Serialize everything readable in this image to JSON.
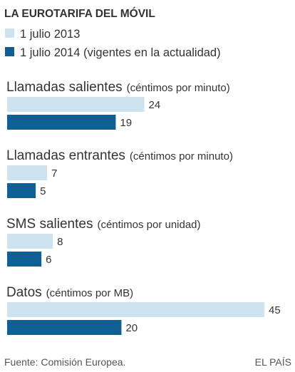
{
  "chart_data": {
    "type": "bar",
    "orientation": "horizontal",
    "title": "LA EUROTARIFA DEL MÓVIL",
    "series": [
      {
        "name": "1 julio 2013",
        "color": "#cde4ee"
      },
      {
        "name": "1 julio 2014 (vigentes en la actualidad)",
        "color": "#0f5f95"
      }
    ],
    "groups": [
      {
        "name": "Llamadas salientes",
        "unit": "(céntimos por minuto)",
        "values": [
          24,
          19
        ]
      },
      {
        "name": "Llamadas entrantes",
        "unit": "(céntimos por minuto)",
        "values": [
          7,
          5
        ]
      },
      {
        "name": "SMS salientes",
        "unit": "(céntimos por unidad)",
        "values": [
          8,
          6
        ]
      },
      {
        "name": "Datos",
        "unit": "(céntimos por MB)",
        "values": [
          45,
          20
        ]
      }
    ],
    "xlim": [
      0,
      45
    ],
    "grid": false,
    "legend": "top-left"
  },
  "footer": {
    "source": "Fuente: Comisión Europea.",
    "brand": "EL PAÍS"
  }
}
